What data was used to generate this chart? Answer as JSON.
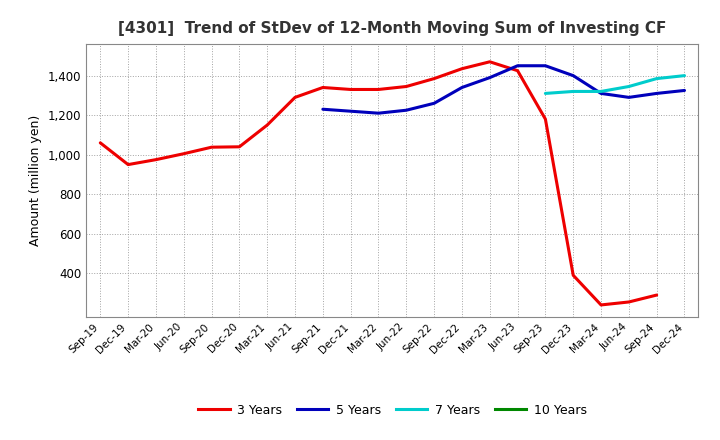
{
  "title": "[4301]  Trend of StDev of 12-Month Moving Sum of Investing CF",
  "ylabel": "Amount (million yen)",
  "background_color": "#ffffff",
  "grid_color": "#999999",
  "ylim": [
    180,
    1560
  ],
  "yticks": [
    400,
    600,
    800,
    1000,
    1200,
    1400
  ],
  "x_labels": [
    "Sep-19",
    "Dec-19",
    "Mar-20",
    "Jun-20",
    "Sep-20",
    "Dec-20",
    "Mar-21",
    "Jun-21",
    "Sep-21",
    "Dec-21",
    "Mar-22",
    "Jun-22",
    "Sep-22",
    "Dec-22",
    "Mar-23",
    "Jun-23",
    "Sep-23",
    "Dec-23",
    "Mar-24",
    "Jun-24",
    "Sep-24",
    "Dec-24"
  ],
  "series": {
    "3 Years": {
      "color": "#ee0000",
      "linewidth": 2.2,
      "values": [
        1060,
        950,
        975,
        1005,
        1038,
        1040,
        1150,
        1290,
        1340,
        1330,
        1330,
        1345,
        1385,
        1435,
        1470,
        1425,
        1180,
        390,
        240,
        255,
        290,
        null
      ]
    },
    "5 Years": {
      "color": "#0000bb",
      "linewidth": 2.2,
      "values": [
        null,
        null,
        null,
        null,
        null,
        null,
        null,
        null,
        1230,
        1220,
        1210,
        1225,
        1260,
        1340,
        1390,
        1450,
        1450,
        1400,
        1310,
        1290,
        1310,
        1325
      ]
    },
    "7 Years": {
      "color": "#00cccc",
      "linewidth": 2.2,
      "values": [
        null,
        null,
        null,
        null,
        null,
        null,
        null,
        null,
        null,
        null,
        null,
        null,
        null,
        null,
        null,
        null,
        1310,
        1320,
        1320,
        1345,
        1385,
        1400
      ]
    },
    "10 Years": {
      "color": "#008800",
      "linewidth": 2.2,
      "values": [
        null,
        null,
        null,
        null,
        null,
        null,
        null,
        null,
        null,
        null,
        null,
        null,
        null,
        null,
        null,
        null,
        null,
        null,
        null,
        null,
        null,
        null
      ]
    }
  },
  "legend_items": [
    "3 Years",
    "5 Years",
    "7 Years",
    "10 Years"
  ],
  "legend_colors": [
    "#ee0000",
    "#0000bb",
    "#00cccc",
    "#008800"
  ]
}
